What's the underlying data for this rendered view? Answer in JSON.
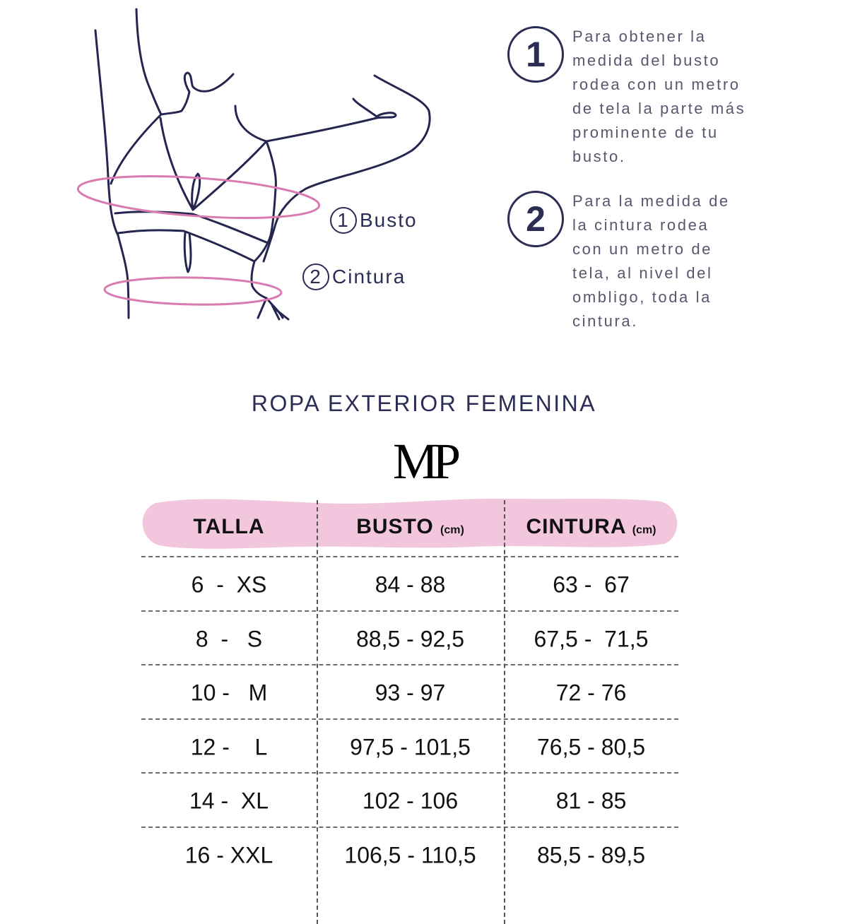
{
  "illustration": {
    "labels": [
      {
        "num": "1",
        "text": "Busto"
      },
      {
        "num": "2",
        "text": "Cintura"
      }
    ],
    "colors": {
      "line": "#25264f",
      "measure": "#d97bb0"
    }
  },
  "instructions": [
    {
      "num": "1",
      "lines": [
        "Para obtener la",
        "medida del busto",
        "rodea con un metro",
        "de tela la parte más",
        "prominente de tu",
        "busto."
      ]
    },
    {
      "num": "2",
      "lines": [
        "Para la medida de",
        "la cintura rodea",
        "con un metro de",
        "tela, al nivel del",
        "ombligo, toda la",
        "cintura."
      ]
    }
  ],
  "title": "ROPA EXTERIOR FEMENINA",
  "logo": "MP",
  "table": {
    "header_color": "#f2c7dd",
    "headers": [
      {
        "label": "TALLA",
        "unit": ""
      },
      {
        "label": "BUSTO",
        "unit": "(cm)"
      },
      {
        "label": "CINTURA",
        "unit": "(cm)"
      }
    ],
    "rows": [
      [
        "6  -  XS",
        "84 - 88",
        "63 -  67"
      ],
      [
        "8  -   S",
        "88,5 - 92,5",
        "67,5 -  71,5"
      ],
      [
        "10 -   M",
        "93 - 97",
        "72 - 76"
      ],
      [
        "12 -    L",
        "97,5 - 101,5",
        "76,5 - 80,5"
      ],
      [
        "14 -  XL",
        "102 - 106",
        "81 - 85"
      ],
      [
        "16 - XXL",
        "106,5 - 110,5",
        "85,5 - 89,5"
      ]
    ]
  }
}
